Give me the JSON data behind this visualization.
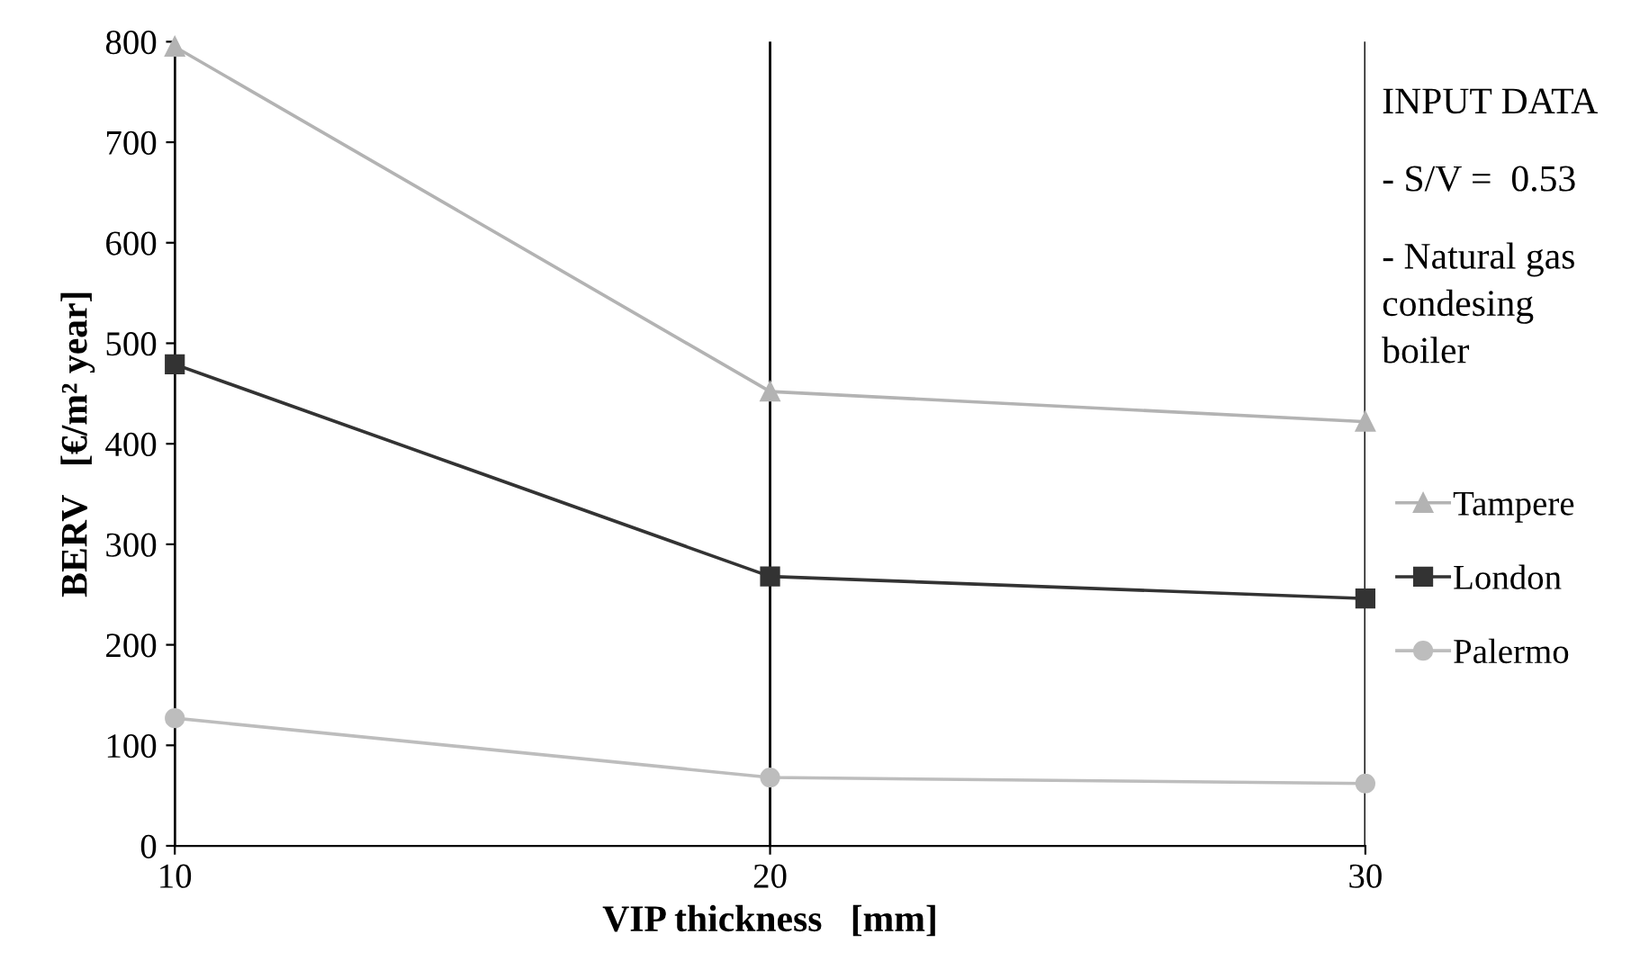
{
  "chart_data": {
    "type": "line",
    "xlabel": "VIP thickness   [mm]",
    "ylabel": "BERV   [€/m² year]",
    "x": [
      10,
      20,
      30
    ],
    "xlim": [
      10,
      30
    ],
    "xticks": [
      10,
      20,
      30
    ],
    "ylim": [
      0,
      800
    ],
    "yticks": [
      0,
      100,
      200,
      300,
      400,
      500,
      600,
      700,
      800
    ],
    "grid": "x",
    "legend": "right",
    "series": [
      {
        "name": "Tampere",
        "color": "#b3b3b3",
        "marker": "triangle",
        "values": [
          795,
          452,
          422
        ]
      },
      {
        "name": "London",
        "color": "#333333",
        "marker": "square",
        "values": [
          479,
          268,
          246
        ]
      },
      {
        "name": "Palermo",
        "color": "#bdbdbd",
        "marker": "circle",
        "values": [
          127,
          68,
          62
        ]
      }
    ],
    "annotations": [
      "INPUT DATA",
      "- S/V =  0.53",
      "- Natural gas\ncondesing\nboiler"
    ]
  }
}
